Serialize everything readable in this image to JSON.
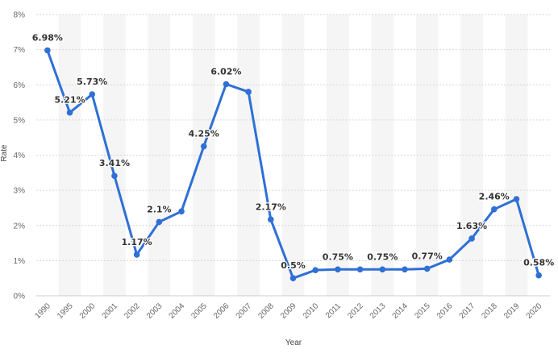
{
  "chart_data": {
    "type": "line",
    "xlabel": "Year",
    "ylabel": "Rate",
    "ylim": [
      0,
      8
    ],
    "y_ticks": [
      "0%",
      "1%",
      "2%",
      "3%",
      "4%",
      "5%",
      "6%",
      "7%",
      "8%"
    ],
    "categories": [
      "1990",
      "1995",
      "2000",
      "2001",
      "2002",
      "2003",
      "2004",
      "2005",
      "2006",
      "2007",
      "2008",
      "2009",
      "2010",
      "2011",
      "2012",
      "2013",
      "2014",
      "2015",
      "2016",
      "2017",
      "2018",
      "2019",
      "2020"
    ],
    "series": [
      {
        "values": [
          6.98,
          5.21,
          5.73,
          3.41,
          1.17,
          2.1,
          2.4,
          4.25,
          6.02,
          5.8,
          2.17,
          0.5,
          0.73,
          0.75,
          0.75,
          0.75,
          0.75,
          0.77,
          1.03,
          1.63,
          2.46,
          2.75,
          0.58
        ],
        "color": "#2f6fd6"
      }
    ],
    "data_labels": [
      "6.98%",
      "5.21%",
      "5.73%",
      "3.41%",
      "1.17%",
      "2.1%",
      "",
      "4.25%",
      "6.02%",
      "",
      "2.17%",
      "0.5%",
      "",
      "0.75%",
      "",
      "0.75%",
      "",
      "0.77%",
      "",
      "1.63%",
      "2.46%",
      "",
      "0.58%"
    ],
    "grid": true,
    "legend": "none"
  }
}
